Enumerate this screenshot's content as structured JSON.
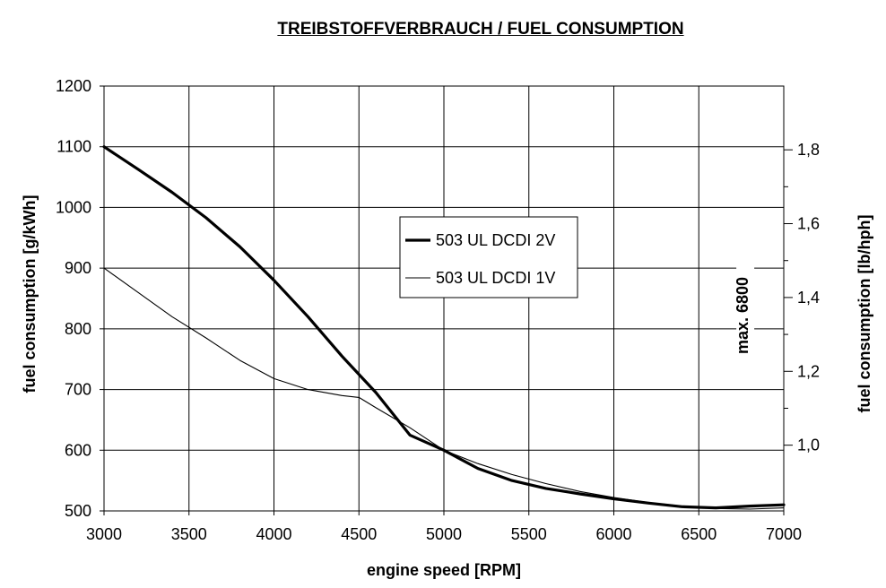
{
  "chart_data": {
    "type": "line",
    "title": "TREIBSTOFFVERBRAUCH / FUEL CONSUMPTION",
    "xlabel": "engine speed [RPM]",
    "ylabel": "fuel consumption [g/kWh]",
    "ylabel_right": "fuel consumption [lb/hph]",
    "xlim": [
      3000,
      7000
    ],
    "ylim": [
      500,
      1200
    ],
    "x_ticks": [
      "3000",
      "3500",
      "4000",
      "4500",
      "5000",
      "5500",
      "6000",
      "6500",
      "7000"
    ],
    "y_ticks": [
      "500",
      "600",
      "700",
      "800",
      "900",
      "1000",
      "1100",
      "1200"
    ],
    "right_ticks": [
      {
        "label": "1,0",
        "value": 1.0
      },
      {
        "label": "1,2",
        "value": 1.2
      },
      {
        "label": "1,4",
        "value": 1.4
      },
      {
        "label": "1,6",
        "value": 1.6
      },
      {
        "label": "1,8",
        "value": 1.8
      }
    ],
    "right_axis_conversion": 608.3,
    "grid": true,
    "legend_position": "center-right",
    "series": [
      {
        "name": "503 UL DCDI 2V",
        "style": "thick",
        "x": [
          3000,
          3200,
          3400,
          3600,
          3800,
          4000,
          4200,
          4400,
          4600,
          4800,
          5000,
          5200,
          5400,
          5600,
          5800,
          6000,
          6200,
          6400,
          6600,
          6800,
          7000
        ],
        "y": [
          1100,
          1063,
          1025,
          983,
          935,
          880,
          820,
          755,
          695,
          625,
          600,
          570,
          550,
          537,
          528,
          520,
          513,
          507,
          505,
          508,
          510
        ]
      },
      {
        "name": "503 UL DCDI 1V",
        "style": "thin",
        "x": [
          3000,
          3200,
          3400,
          3600,
          3800,
          4000,
          4200,
          4400,
          4500,
          4600,
          4800,
          5000,
          5200,
          5400,
          5600,
          5800,
          6000,
          6200,
          6400,
          6600,
          6800,
          7000
        ],
        "y": [
          900,
          860,
          820,
          785,
          748,
          718,
          700,
          690,
          687,
          670,
          637,
          600,
          578,
          560,
          545,
          532,
          522,
          514,
          508,
          504,
          503,
          505
        ]
      }
    ],
    "annotations": [
      {
        "text": "max. 6800",
        "x": 6800
      }
    ]
  }
}
